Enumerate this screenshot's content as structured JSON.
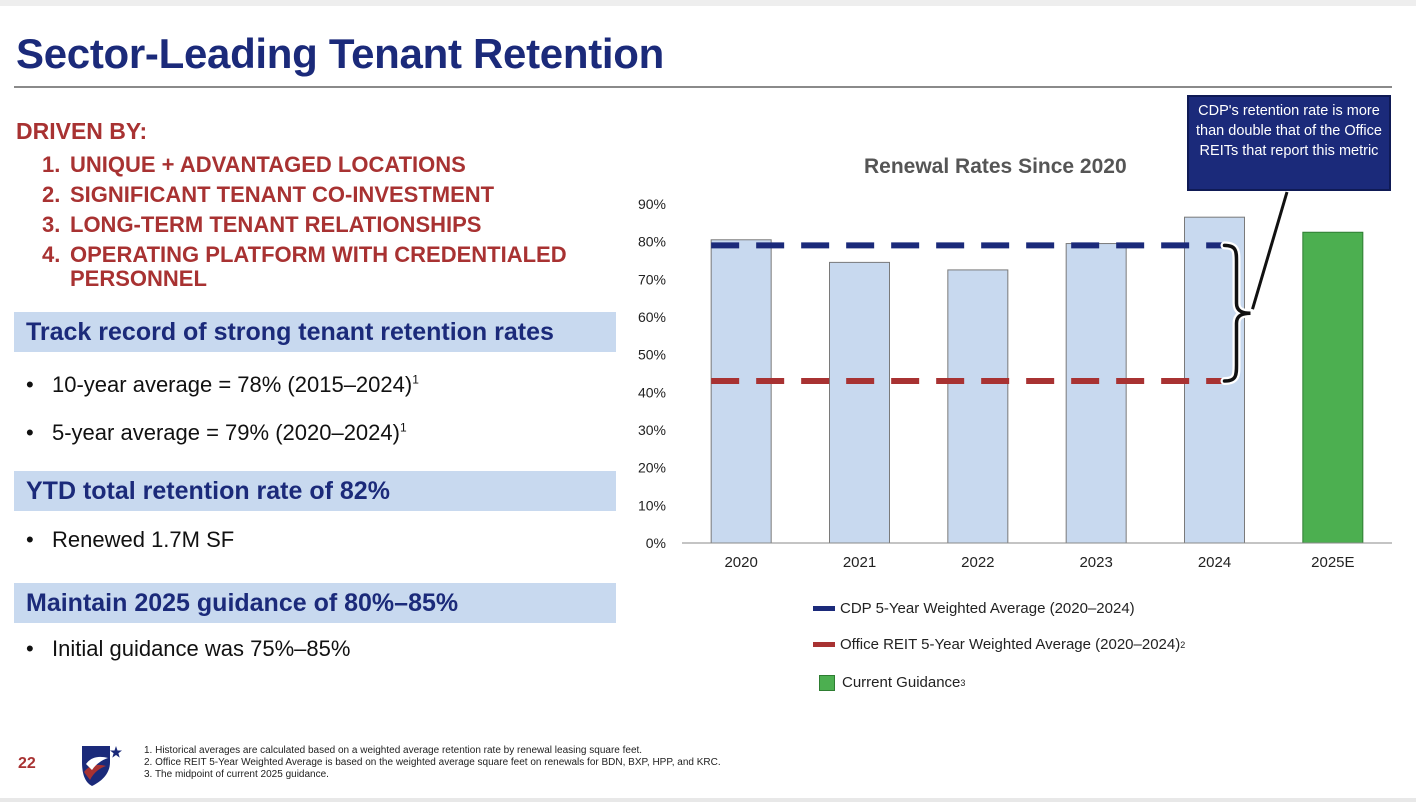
{
  "title": "Sector-Leading Tenant Retention",
  "driven_by": {
    "heading": "DRIVEN BY:",
    "items": [
      {
        "num": "1.",
        "text": "UNIQUE + ADVANTAGED  LOCATIONS"
      },
      {
        "num": "2.",
        "text": "SIGNIFICANT TENANT CO-INVESTMENT"
      },
      {
        "num": "3.",
        "text": "LONG-TERM TENANT RELATIONSHIPS"
      },
      {
        "num": "4.",
        "text": "OPERATING PLATFORM WITH CREDENTIALED PERSONNEL"
      }
    ]
  },
  "sections": {
    "track": {
      "heading": "Track record of strong tenant retention rates",
      "bullets": [
        {
          "text": "10-year average = 78% (2015–2024)",
          "sup": "1"
        },
        {
          "text": "5-year average = 79% (2020–2024)",
          "sup": "1"
        }
      ]
    },
    "ytd": {
      "heading": "YTD total retention rate of 82%",
      "bullets": [
        {
          "text": "Renewed 1.7M SF"
        }
      ]
    },
    "guidance": {
      "heading": "Maintain 2025 guidance of 80%–85%",
      "bullets": [
        {
          "text": "Initial guidance was 75%–85%"
        }
      ]
    }
  },
  "callout": "CDP's retention rate is more than double that of the Office REITs that report this metric",
  "legend": {
    "cdp": "CDP 5-Year Weighted Average (2020–2024)",
    "reit": "Office REIT 5-Year Weighted Average (2020–2024)",
    "reit_sup": "2",
    "guidance": "Current Guidance",
    "guidance_sup": "3"
  },
  "colors": {
    "title_navy": "#1b2a7a",
    "accent_red": "#a83232",
    "bar_blue": "#c8d9ef",
    "bar_green": "#4caf50",
    "cdp_line": "#1b2a7a",
    "reit_line": "#a83232"
  },
  "chart_data": {
    "type": "bar",
    "title": "Renewal Rates Since 2020",
    "categories": [
      "2020",
      "2021",
      "2022",
      "2023",
      "2024",
      "2025E"
    ],
    "values": [
      80.5,
      74.5,
      72.5,
      79.5,
      86.5,
      82.5
    ],
    "highlight_category": "2025E",
    "ylim": [
      0,
      90
    ],
    "yticks": [
      0,
      10,
      20,
      30,
      40,
      50,
      60,
      70,
      80,
      90
    ],
    "ytick_format": "percent",
    "reference_lines": [
      {
        "name": "CDP 5-Year Weighted Average (2020–2024)",
        "value": 79,
        "style": "dashed",
        "color": "#1b2a7a"
      },
      {
        "name": "Office REIT 5-Year Weighted Average (2020–2024)",
        "value": 43,
        "style": "dashed",
        "color": "#a83232"
      }
    ],
    "grid": false,
    "legend_position": "bottom"
  },
  "footer": {
    "page": "22",
    "notes": [
      "1. Historical averages are calculated based on a weighted average retention rate by renewal leasing square feet.",
      "2. Office REIT 5-Year Weighted Average is based on the weighted average square feet on renewals for BDN, BXP, HPP, and KRC.",
      "3. The midpoint of current 2025 guidance."
    ]
  }
}
